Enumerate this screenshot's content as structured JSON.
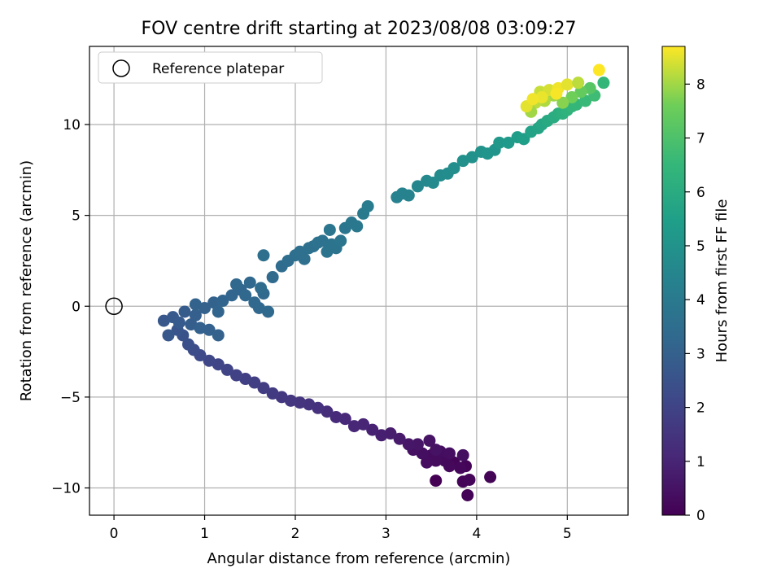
{
  "chart_data": {
    "type": "scatter",
    "title": "FOV centre drift starting at 2023/08/08 03:09:27",
    "xlabel": "Angular distance from reference (arcmin)",
    "ylabel": "Rotation from reference (arcmin)",
    "xlim": [
      -0.27,
      5.67
    ],
    "ylim": [
      -11.5,
      14.3
    ],
    "xticks": [
      0,
      1,
      2,
      3,
      4,
      5
    ],
    "yticks": [
      -10,
      -5,
      0,
      5,
      10
    ],
    "grid": true,
    "legend": {
      "position": "upper left",
      "entries": [
        "Reference platepar"
      ]
    },
    "reference_point": {
      "x": 0,
      "y": 0,
      "label": "Reference platepar"
    },
    "colorbar": {
      "label": "Hours from first FF file",
      "min": 0,
      "max": 8.7,
      "ticks": [
        0,
        1,
        2,
        3,
        4,
        5,
        6,
        7,
        8
      ],
      "colormap": "viridis"
    },
    "points": [
      [
        3.55,
        -9.6,
        0.0
      ],
      [
        3.9,
        -10.4,
        0.05
      ],
      [
        4.15,
        -9.4,
        0.1
      ],
      [
        3.85,
        -9.65,
        0.12
      ],
      [
        3.92,
        -9.55,
        0.15
      ],
      [
        3.88,
        -8.8,
        0.08
      ],
      [
        3.75,
        -8.6,
        0.1
      ],
      [
        3.82,
        -8.9,
        0.18
      ],
      [
        3.7,
        -8.8,
        0.2
      ],
      [
        3.65,
        -8.5,
        0.22
      ],
      [
        3.6,
        -8.3,
        0.25
      ],
      [
        3.55,
        -8.5,
        0.28
      ],
      [
        3.5,
        -8.2,
        0.3
      ],
      [
        3.45,
        -8.6,
        0.32
      ],
      [
        3.6,
        -8.0,
        0.34
      ],
      [
        3.7,
        -8.1,
        0.36
      ],
      [
        3.85,
        -8.2,
        0.38
      ],
      [
        3.4,
        -8.1,
        0.4
      ],
      [
        3.3,
        -7.9,
        0.45
      ],
      [
        3.48,
        -7.4,
        0.5
      ],
      [
        3.55,
        -7.9,
        0.48
      ],
      [
        3.35,
        -7.6,
        0.55
      ],
      [
        3.25,
        -7.6,
        0.6
      ],
      [
        3.15,
        -7.3,
        0.7
      ],
      [
        3.05,
        -7.0,
        0.8
      ],
      [
        2.95,
        -7.1,
        0.85
      ],
      [
        2.85,
        -6.8,
        0.9
      ],
      [
        2.75,
        -6.5,
        1.0
      ],
      [
        2.65,
        -6.6,
        1.05
      ],
      [
        2.55,
        -6.2,
        1.1
      ],
      [
        2.45,
        -6.1,
        1.2
      ],
      [
        2.35,
        -5.8,
        1.3
      ],
      [
        2.25,
        -5.6,
        1.4
      ],
      [
        2.15,
        -5.4,
        1.45
      ],
      [
        2.05,
        -5.3,
        1.5
      ],
      [
        1.95,
        -5.2,
        1.55
      ],
      [
        1.85,
        -5.0,
        1.6
      ],
      [
        1.75,
        -4.8,
        1.7
      ],
      [
        1.65,
        -4.5,
        1.75
      ],
      [
        1.55,
        -4.2,
        1.8
      ],
      [
        1.45,
        -4.0,
        1.85
      ],
      [
        1.35,
        -3.8,
        1.9
      ],
      [
        1.25,
        -3.5,
        2.0
      ],
      [
        1.15,
        -3.2,
        2.05
      ],
      [
        1.05,
        -3.0,
        2.1
      ],
      [
        0.95,
        -2.7,
        2.2
      ],
      [
        0.88,
        -2.4,
        2.3
      ],
      [
        0.82,
        -2.1,
        2.4
      ],
      [
        0.76,
        -1.6,
        2.5
      ],
      [
        0.7,
        -1.3,
        2.6
      ],
      [
        0.6,
        -1.6,
        2.65
      ],
      [
        0.55,
        -0.8,
        2.7
      ],
      [
        0.65,
        -0.6,
        2.75
      ],
      [
        0.72,
        -0.9,
        2.8
      ],
      [
        0.78,
        -0.3,
        2.85
      ],
      [
        0.85,
        -1.0,
        2.9
      ],
      [
        0.9,
        -0.5,
        2.95
      ],
      [
        0.95,
        -1.2,
        3.0
      ],
      [
        1.05,
        -1.3,
        3.0
      ],
      [
        1.15,
        -1.6,
        3.05
      ],
      [
        1.0,
        -0.1,
        3.05
      ],
      [
        0.9,
        0.1,
        3.1
      ],
      [
        1.1,
        0.2,
        3.1
      ],
      [
        1.2,
        0.3,
        3.15
      ],
      [
        1.15,
        -0.3,
        3.15
      ],
      [
        1.3,
        0.6,
        3.2
      ],
      [
        1.4,
        0.9,
        3.2
      ],
      [
        1.5,
        1.3,
        3.25
      ],
      [
        1.35,
        1.2,
        3.25
      ],
      [
        1.45,
        0.6,
        3.28
      ],
      [
        1.55,
        0.2,
        3.3
      ],
      [
        1.6,
        -0.1,
        3.3
      ],
      [
        1.7,
        -0.3,
        3.32
      ],
      [
        1.65,
        0.7,
        3.35
      ],
      [
        1.75,
        1.6,
        3.4
      ],
      [
        1.62,
        1.0,
        3.42
      ],
      [
        1.85,
        2.2,
        3.45
      ],
      [
        1.92,
        2.5,
        3.5
      ],
      [
        2.0,
        2.8,
        3.55
      ],
      [
        1.65,
        2.8,
        3.55
      ],
      [
        2.05,
        3.0,
        3.6
      ],
      [
        2.1,
        2.6,
        3.6
      ],
      [
        2.15,
        3.2,
        3.62
      ],
      [
        2.2,
        3.3,
        3.65
      ],
      [
        2.25,
        3.5,
        3.67
      ],
      [
        2.3,
        3.6,
        3.7
      ],
      [
        2.35,
        3.0,
        3.72
      ],
      [
        2.4,
        3.4,
        3.75
      ],
      [
        2.45,
        3.2,
        3.78
      ],
      [
        2.5,
        3.6,
        3.8
      ],
      [
        2.38,
        4.2,
        3.82
      ],
      [
        2.55,
        4.3,
        3.85
      ],
      [
        2.62,
        4.6,
        3.9
      ],
      [
        2.68,
        4.4,
        3.95
      ],
      [
        2.75,
        5.1,
        4.0
      ],
      [
        2.8,
        5.5,
        4.05
      ],
      [
        3.12,
        6.0,
        4.3
      ],
      [
        3.18,
        6.2,
        4.35
      ],
      [
        3.25,
        6.1,
        4.4
      ],
      [
        3.35,
        6.6,
        4.5
      ],
      [
        3.45,
        6.9,
        4.6
      ],
      [
        3.52,
        6.8,
        4.65
      ],
      [
        3.6,
        7.2,
        4.7
      ],
      [
        3.68,
        7.3,
        4.75
      ],
      [
        3.75,
        7.6,
        4.8
      ],
      [
        3.85,
        8.0,
        4.9
      ],
      [
        3.95,
        8.2,
        4.95
      ],
      [
        4.05,
        8.5,
        5.0
      ],
      [
        4.12,
        8.4,
        5.05
      ],
      [
        4.2,
        8.6,
        5.1
      ],
      [
        4.25,
        9.0,
        5.2
      ],
      [
        4.35,
        9.0,
        5.3
      ],
      [
        4.45,
        9.3,
        5.4
      ],
      [
        4.52,
        9.2,
        5.5
      ],
      [
        4.6,
        9.6,
        5.6
      ],
      [
        4.68,
        9.8,
        5.7
      ],
      [
        4.72,
        10.0,
        5.8
      ],
      [
        4.78,
        10.2,
        5.9
      ],
      [
        4.85,
        10.4,
        6.0
      ],
      [
        4.9,
        10.6,
        6.1
      ],
      [
        4.95,
        10.6,
        6.2
      ],
      [
        5.0,
        10.8,
        6.3
      ],
      [
        5.05,
        11.0,
        6.4
      ],
      [
        5.1,
        11.1,
        6.5
      ],
      [
        5.2,
        11.3,
        6.6
      ],
      [
        5.3,
        11.6,
        6.7
      ],
      [
        5.4,
        12.3,
        6.5
      ],
      [
        5.25,
        12.0,
        7.2
      ],
      [
        5.15,
        11.8,
        7.4
      ],
      [
        5.05,
        11.5,
        7.6
      ],
      [
        4.95,
        11.2,
        7.8
      ],
      [
        4.85,
        11.6,
        8.0
      ],
      [
        4.75,
        11.3,
        8.1
      ],
      [
        4.65,
        11.2,
        8.2
      ],
      [
        4.6,
        10.7,
        8.0
      ],
      [
        4.7,
        11.8,
        8.3
      ],
      [
        4.8,
        11.9,
        8.4
      ],
      [
        4.55,
        11.0,
        8.5
      ],
      [
        4.9,
        12.0,
        8.6
      ],
      [
        5.35,
        13.0,
        8.7
      ],
      [
        5.0,
        12.2,
        8.5
      ],
      [
        4.88,
        11.7,
        8.65
      ],
      [
        4.72,
        11.5,
        8.55
      ],
      [
        5.12,
        12.3,
        8.2
      ],
      [
        4.62,
        11.4,
        8.6
      ]
    ]
  }
}
